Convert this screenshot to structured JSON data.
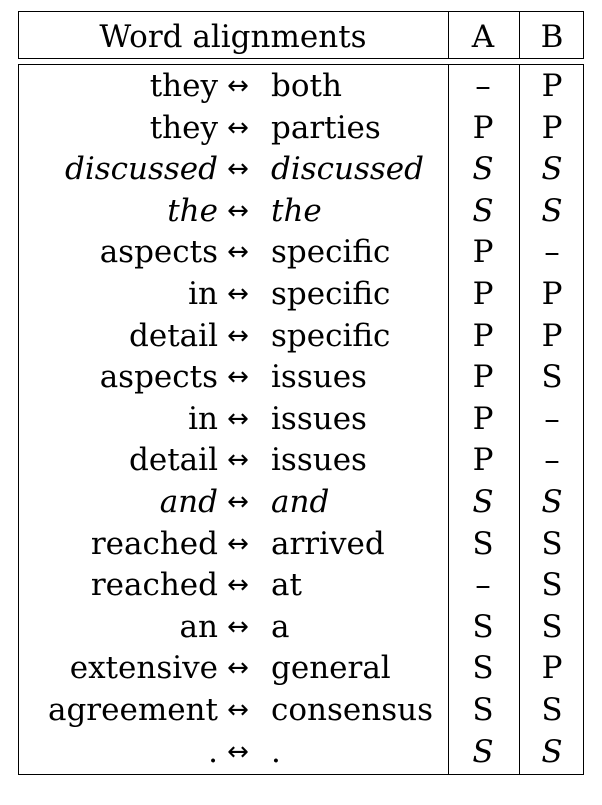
{
  "header": {
    "word_alignments": "Word alignments",
    "col_a": "A",
    "col_b": "B"
  },
  "arrow_symbol": "↔",
  "rows": [
    {
      "left": "they",
      "right": "both",
      "a": "–",
      "b": "P",
      "italic_words": false,
      "italic_a": false,
      "italic_b": false
    },
    {
      "left": "they",
      "right": "parties",
      "a": "P",
      "b": "P",
      "italic_words": false,
      "italic_a": false,
      "italic_b": false
    },
    {
      "left": "discussed",
      "right": "discussed",
      "a": "S",
      "b": "S",
      "italic_words": true,
      "italic_a": true,
      "italic_b": true
    },
    {
      "left": "the",
      "right": "the",
      "a": "S",
      "b": "S",
      "italic_words": true,
      "italic_a": true,
      "italic_b": true
    },
    {
      "left": "aspects",
      "right": "specific",
      "a": "P",
      "b": "–",
      "italic_words": false,
      "italic_a": false,
      "italic_b": false
    },
    {
      "left": "in",
      "right": "specific",
      "a": "P",
      "b": "P",
      "italic_words": false,
      "italic_a": false,
      "italic_b": false
    },
    {
      "left": "detail",
      "right": "specific",
      "a": "P",
      "b": "P",
      "italic_words": false,
      "italic_a": false,
      "italic_b": false
    },
    {
      "left": "aspects",
      "right": "issues",
      "a": "P",
      "b": "S",
      "italic_words": false,
      "italic_a": false,
      "italic_b": false
    },
    {
      "left": "in",
      "right": "issues",
      "a": "P",
      "b": "–",
      "italic_words": false,
      "italic_a": false,
      "italic_b": false
    },
    {
      "left": "detail",
      "right": "issues",
      "a": "P",
      "b": "–",
      "italic_words": false,
      "italic_a": false,
      "italic_b": false
    },
    {
      "left": "and",
      "right": "and",
      "a": "S",
      "b": "S",
      "italic_words": true,
      "italic_a": true,
      "italic_b": true
    },
    {
      "left": "reached",
      "right": "arrived",
      "a": "S",
      "b": "S",
      "italic_words": false,
      "italic_a": false,
      "italic_b": false
    },
    {
      "left": "reached",
      "right": "at",
      "a": "–",
      "b": "S",
      "italic_words": false,
      "italic_a": false,
      "italic_b": false
    },
    {
      "left": "an",
      "right": "a",
      "a": "S",
      "b": "S",
      "italic_words": false,
      "italic_a": false,
      "italic_b": false
    },
    {
      "left": "extensive",
      "right": "general",
      "a": "S",
      "b": "P",
      "italic_words": false,
      "italic_a": false,
      "italic_b": false
    },
    {
      "left": "agreement",
      "right": "consensus",
      "a": "S",
      "b": "S",
      "italic_words": false,
      "italic_a": false,
      "italic_b": false
    },
    {
      "left": ".",
      "right": ".",
      "a": "S",
      "b": "S",
      "italic_words": false,
      "italic_a": true,
      "italic_b": true
    }
  ]
}
